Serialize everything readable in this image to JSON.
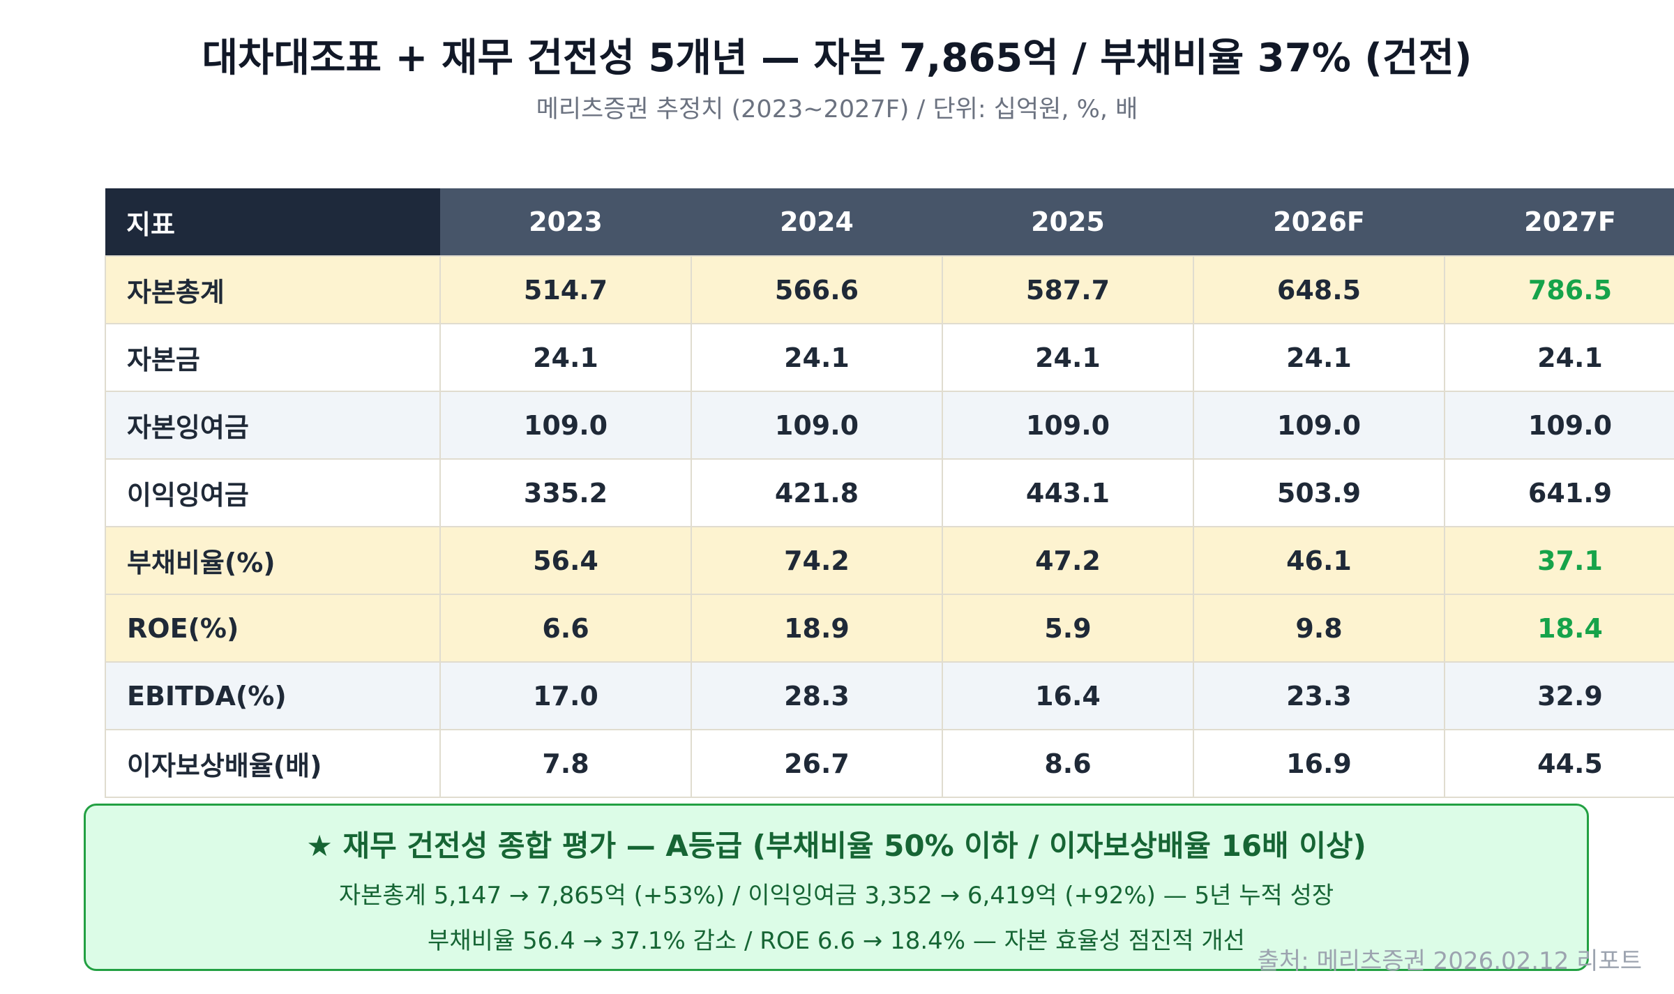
{
  "header": {
    "title": "대차대조표 + 재무 건전성 5개년 — 자본 7,865억 / 부채비율 37% (건전)",
    "subtitle": "메리츠증권 추정치 (2023~2027F) / 단위: 십억원, %, 배"
  },
  "table": {
    "label_header": "지표",
    "years": [
      "2023",
      "2024",
      "2025",
      "2026F",
      "2027F"
    ],
    "rows": [
      {
        "label": "자본총계",
        "values": [
          "514.7",
          "566.6",
          "587.7",
          "648.5",
          "786.5"
        ]
      },
      {
        "label": "자본금",
        "values": [
          "24.1",
          "24.1",
          "24.1",
          "24.1",
          "24.1"
        ]
      },
      {
        "label": "자본잉여금",
        "values": [
          "109.0",
          "109.0",
          "109.0",
          "109.0",
          "109.0"
        ]
      },
      {
        "label": "이익잉여금",
        "values": [
          "335.2",
          "421.8",
          "443.1",
          "503.9",
          "641.9"
        ]
      },
      {
        "label": "부채비율(%)",
        "values": [
          "56.4",
          "74.2",
          "47.2",
          "46.1",
          "37.1"
        ]
      },
      {
        "label": "ROE(%)",
        "values": [
          "6.6",
          "18.9",
          "5.9",
          "9.8",
          "18.4"
        ]
      },
      {
        "label": "EBITDA(%)",
        "values": [
          "17.0",
          "28.3",
          "16.4",
          "23.3",
          "32.9"
        ]
      },
      {
        "label": "이자보상배율(배)",
        "values": [
          "7.8",
          "26.7",
          "8.6",
          "16.9",
          "44.5"
        ]
      }
    ],
    "highlight_color": "#fdf3d0",
    "accent_green": "#16a34a"
  },
  "summary": {
    "title": "★ 재무 건전성 종합 평가 — A등급 (부채비율 50% 이하 / 이자보상배율 16배 이상)",
    "line1": "자본총계 5,147 → 7,865억 (+53%) / 이익잉여금 3,352 → 6,419억 (+92%) — 5년 누적 성장",
    "line2": "부채비율 56.4 → 37.1% 감소 / ROE 6.6 → 18.4% — 자본 효율성 점진적 개선"
  },
  "source": "출처: 메리츠증권 2026.02.12 리포트"
}
